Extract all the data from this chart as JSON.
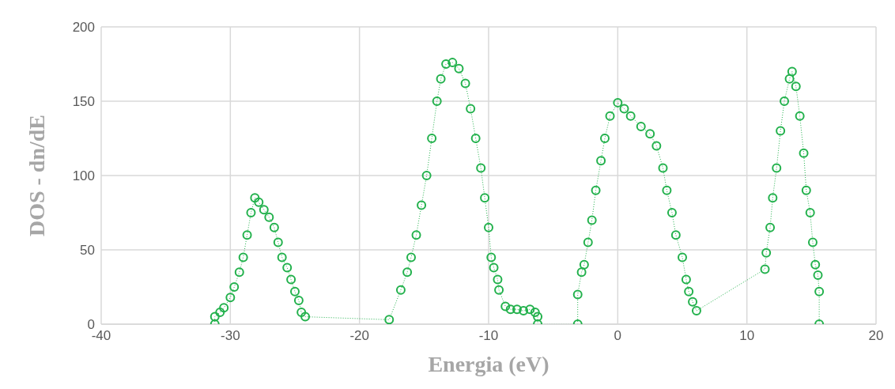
{
  "chart_data": {
    "type": "line",
    "xlabel": "Energia (eV)",
    "ylabel": "DOS - dn/dE",
    "xlim": [
      -40,
      20
    ],
    "xticks": [
      -40,
      -30,
      -20,
      -10,
      0,
      10,
      20
    ],
    "ylim": [
      0,
      200
    ],
    "yticks": [
      0,
      50,
      100,
      150,
      200
    ],
    "grid": true,
    "marker": "circle",
    "line_style": "dotted",
    "series": [
      {
        "color": "#22b14c",
        "x": [
          -31.2,
          -31.2,
          -30.8,
          -30.5,
          -30,
          -29.7,
          -29.3,
          -29,
          -28.7,
          -28.4,
          -28.1,
          -27.8,
          -27.4,
          -27,
          -26.6,
          -26.3,
          -26,
          -25.6,
          -25.3,
          -25,
          -24.7,
          -24.5,
          -24.2,
          -17.7,
          -16.8,
          -16.3,
          -16,
          -15.6,
          -15.2,
          -14.8,
          -14.4,
          -14,
          -13.7,
          -13.3,
          -12.8,
          -12.3,
          -11.8,
          -11.4,
          -11,
          -10.6,
          -10.3,
          -10,
          -9.8,
          -9.6,
          -9.3,
          -9.2,
          -8.7,
          -8.3,
          -7.8,
          -7.3,
          -6.8,
          -6.4,
          -6.2,
          -6.2,
          -3.1,
          -3.1,
          -2.8,
          -2.6,
          -2.3,
          -2,
          -1.7,
          -1.3,
          -1,
          -0.6,
          0,
          0.5,
          1,
          1.8,
          2.5,
          3,
          3.5,
          3.8,
          4.2,
          4.5,
          5,
          5.3,
          5.5,
          5.8,
          6.1,
          11.4,
          11.5,
          11.8,
          12,
          12.3,
          12.6,
          12.9,
          13.3,
          13.5,
          13.8,
          14.1,
          14.4,
          14.6,
          14.9,
          15.1,
          15.3,
          15.5,
          15.6,
          15.6
        ],
        "values": [
          0,
          5,
          8,
          11,
          18,
          25,
          35,
          45,
          60,
          75,
          85,
          82,
          77,
          72,
          65,
          55,
          45,
          38,
          30,
          22,
          16,
          8,
          5,
          3,
          23,
          35,
          45,
          60,
          80,
          100,
          125,
          150,
          165,
          175,
          176,
          172,
          162,
          145,
          125,
          105,
          85,
          65,
          45,
          38,
          30,
          23,
          12,
          10,
          10,
          9,
          10,
          8,
          5,
          0,
          0,
          20,
          35,
          40,
          55,
          70,
          90,
          110,
          125,
          140,
          149,
          145,
          140,
          133,
          128,
          120,
          105,
          90,
          75,
          60,
          45,
          30,
          22,
          15,
          9,
          37,
          48,
          65,
          85,
          105,
          130,
          150,
          165,
          170,
          160,
          140,
          115,
          90,
          75,
          55,
          40,
          33,
          22,
          0
        ]
      }
    ]
  }
}
